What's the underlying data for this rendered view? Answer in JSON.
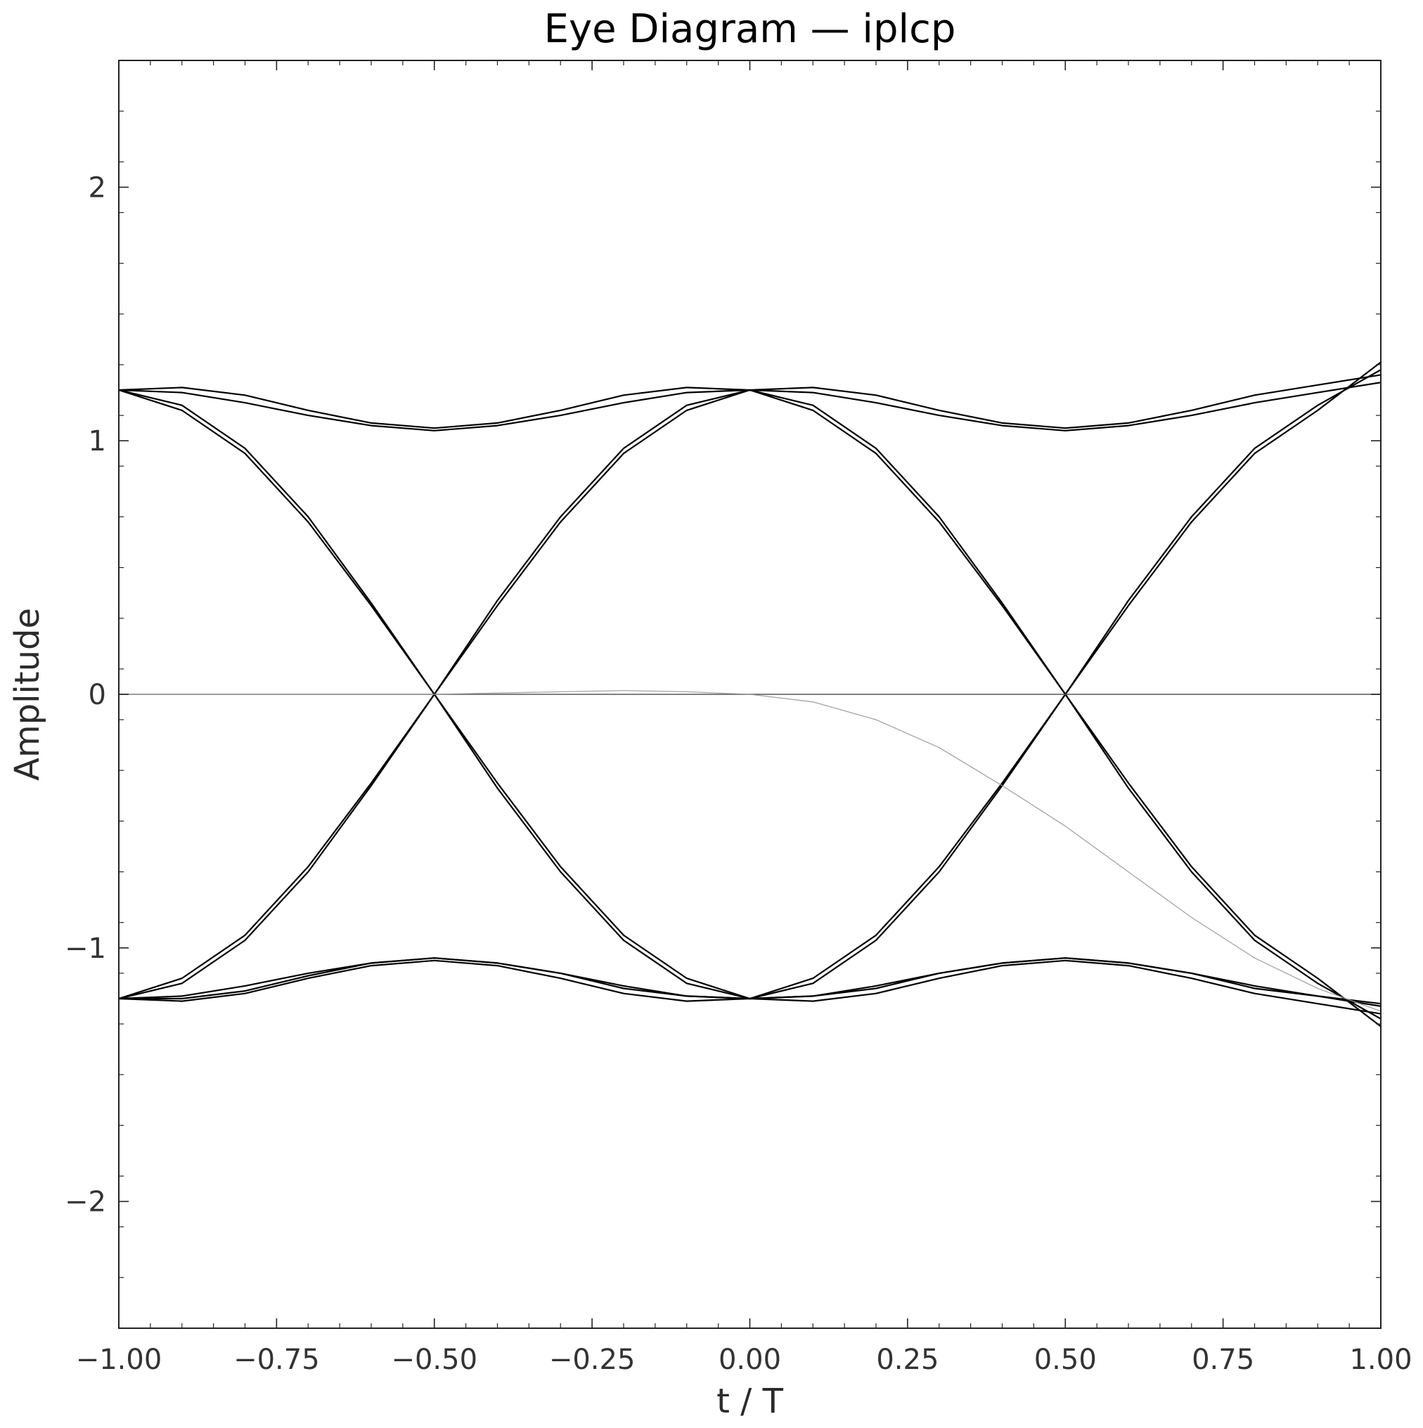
{
  "chart_data": {
    "type": "line",
    "title": "Eye Diagram — iplcp",
    "xlabel": "t / T",
    "ylabel": "Amplitude",
    "xlim": [
      -1.0,
      1.0
    ],
    "ylim": [
      -2.5,
      2.5
    ],
    "x_ticks": [
      -1.0,
      -0.75,
      -0.5,
      -0.25,
      0.0,
      0.25,
      0.5,
      0.75,
      1.0
    ],
    "x_tick_labels": [
      "−1.00",
      "−0.75",
      "−0.50",
      "−0.25",
      "0.00",
      "0.25",
      "0.50",
      "0.75",
      "1.00"
    ],
    "y_ticks": [
      -2,
      -1,
      0,
      1,
      2
    ],
    "y_tick_labels": [
      "−2",
      "−1",
      "0",
      "1",
      "2"
    ],
    "grid": false,
    "line_color": "#000000",
    "reference_line_color": "#555555",
    "faint_trace_color": "#999999",
    "x": [
      -1.0,
      -0.9,
      -0.8,
      -0.7,
      -0.6,
      -0.5,
      -0.4,
      -0.3,
      -0.2,
      -0.1,
      0.0,
      0.1,
      0.2,
      0.3,
      0.4,
      0.5,
      0.6,
      0.7,
      0.8,
      0.9,
      1.0
    ],
    "series": [
      {
        "values": [
          1.2,
          1.21,
          1.18,
          1.12,
          1.07,
          1.05,
          1.07,
          1.12,
          1.18,
          1.21,
          1.2,
          1.21,
          1.18,
          1.12,
          1.07,
          1.05,
          1.07,
          1.12,
          1.18,
          1.22,
          1.26
        ]
      },
      {
        "values": [
          1.2,
          1.19,
          1.15,
          1.1,
          1.06,
          1.04,
          1.06,
          1.1,
          1.15,
          1.19,
          1.2,
          1.19,
          1.15,
          1.1,
          1.06,
          1.04,
          1.06,
          1.1,
          1.15,
          1.19,
          1.23
        ]
      },
      {
        "values": [
          1.2,
          1.12,
          0.95,
          0.68,
          0.35,
          0.0,
          -0.35,
          -0.68,
          -0.95,
          -1.12,
          -1.2,
          -1.12,
          -0.95,
          -0.68,
          -0.35,
          0.0,
          0.35,
          0.68,
          0.95,
          1.12,
          1.31
        ]
      },
      {
        "values": [
          1.2,
          1.14,
          0.97,
          0.7,
          0.36,
          0.0,
          -0.37,
          -0.7,
          -0.97,
          -1.14,
          -1.2,
          -1.14,
          -0.97,
          -0.7,
          -0.36,
          0.0,
          0.37,
          0.7,
          0.97,
          1.14,
          1.28
        ]
      },
      {
        "values": [
          -1.2,
          -1.12,
          -0.95,
          -0.68,
          -0.35,
          0.0,
          0.35,
          0.68,
          0.95,
          1.12,
          1.2,
          1.12,
          0.95,
          0.68,
          0.35,
          0.0,
          -0.35,
          -0.68,
          -0.95,
          -1.12,
          -1.31
        ]
      },
      {
        "values": [
          -1.2,
          -1.14,
          -0.97,
          -0.7,
          -0.36,
          0.0,
          0.37,
          0.7,
          0.97,
          1.14,
          1.2,
          1.14,
          0.97,
          0.7,
          0.36,
          0.0,
          -0.37,
          -0.7,
          -0.97,
          -1.14,
          -1.28
        ]
      },
      {
        "values": [
          -1.2,
          -1.21,
          -1.18,
          -1.12,
          -1.07,
          -1.05,
          -1.07,
          -1.12,
          -1.18,
          -1.21,
          -1.2,
          -1.21,
          -1.18,
          -1.12,
          -1.07,
          -1.05,
          -1.07,
          -1.12,
          -1.18,
          -1.22,
          -1.26
        ]
      },
      {
        "values": [
          -1.2,
          -1.19,
          -1.15,
          -1.1,
          -1.06,
          -1.04,
          -1.06,
          -1.1,
          -1.15,
          -1.19,
          -1.2,
          -1.19,
          -1.15,
          -1.1,
          -1.06,
          -1.04,
          -1.06,
          -1.1,
          -1.15,
          -1.19,
          -1.23
        ]
      },
      {
        "values": [
          0.0,
          0.0,
          0.0,
          0.0,
          0.0,
          0.0,
          0.0,
          0.0,
          0.0,
          0.0,
          0.0,
          0.0,
          0.0,
          0.0,
          0.0,
          0.0,
          0.0,
          0.0,
          0.0,
          0.0,
          0.0
        ],
        "style": "reference"
      },
      {
        "values": [
          -1.2,
          -1.2,
          -1.17,
          -1.11,
          -1.06,
          -1.04,
          -1.06,
          -1.1,
          -1.16,
          -1.19,
          -1.2,
          -1.19,
          -1.16,
          -1.1,
          -1.06,
          -1.04,
          -1.06,
          -1.1,
          -1.16,
          -1.19,
          -1.22
        ]
      },
      {
        "values": [
          0.0,
          0.0,
          0.0,
          0.0,
          0.0,
          0.0,
          0.005,
          0.01,
          0.015,
          0.01,
          0.0,
          -0.03,
          -0.1,
          -0.21,
          -0.36,
          -0.52,
          -0.7,
          -0.88,
          -1.04,
          -1.16,
          -1.25
        ],
        "style": "faint"
      }
    ]
  }
}
